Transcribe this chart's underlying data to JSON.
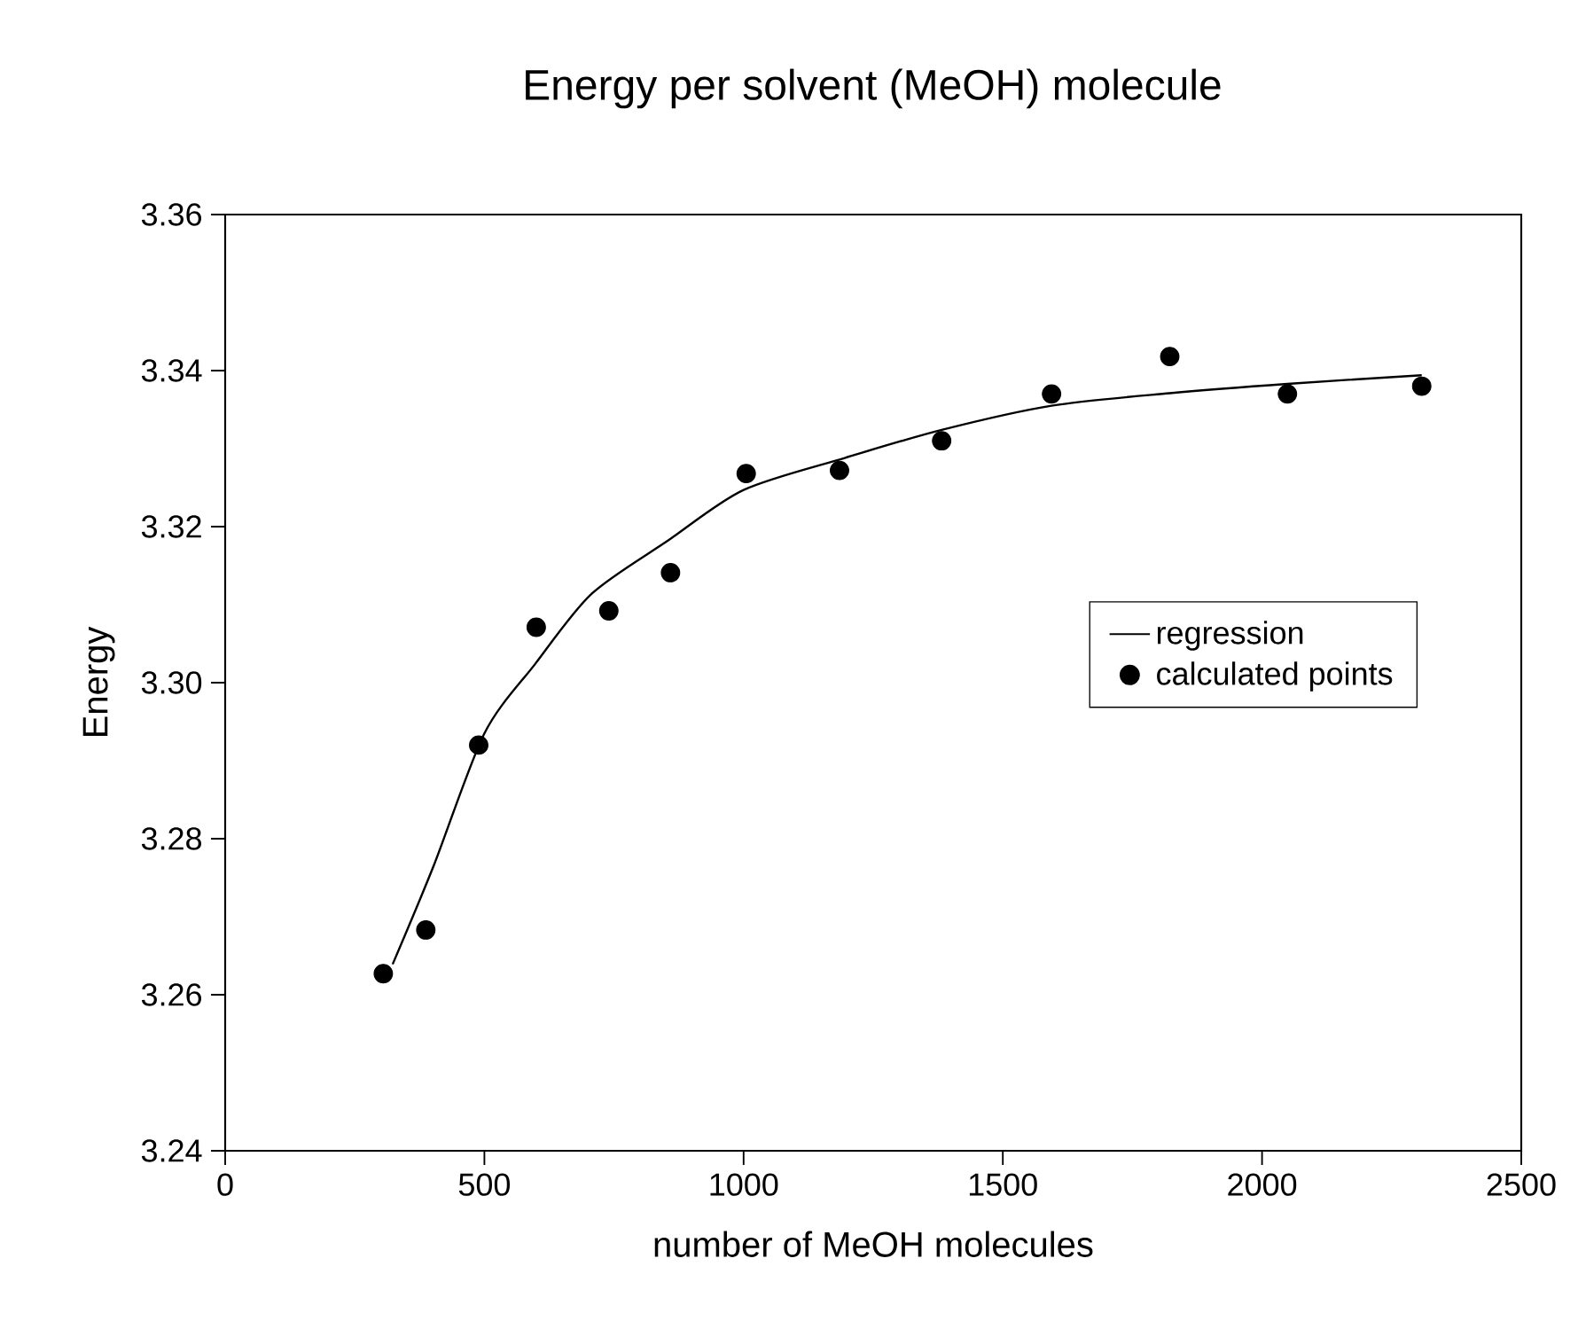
{
  "chart_data": {
    "type": "scatter",
    "title": "Energy per solvent (MeOH) molecule",
    "xlabel": "number of MeOH molecules",
    "ylabel": "Energy",
    "xlim": [
      0,
      2500
    ],
    "ylim": [
      3.24,
      3.36
    ],
    "xticks": [
      0,
      500,
      1000,
      1500,
      2000,
      2500
    ],
    "yticks": [
      {
        "value": 3.24,
        "label": "3.24"
      },
      {
        "value": 3.26,
        "label": "3.26"
      },
      {
        "value": 3.28,
        "label": "3.28"
      },
      {
        "value": 3.3,
        "label": "3.30"
      },
      {
        "value": 3.32,
        "label": "3.32"
      },
      {
        "value": 3.34,
        "label": "3.34"
      },
      {
        "value": 3.36,
        "label": "3.36"
      }
    ],
    "grid": false,
    "legend": "right",
    "series": [
      {
        "name": "regression",
        "type": "line",
        "color": "#000000",
        "marker": "none",
        "line_style": "solid",
        "x": [
          323,
          402,
          500,
          598,
          707,
          854,
          1000,
          1195,
          1382,
          1594,
          1822,
          2049,
          2308
        ],
        "values": [
          3.2639,
          3.2765,
          3.2935,
          3.3024,
          3.3114,
          3.3182,
          3.3247,
          3.3288,
          3.3324,
          3.3355,
          3.3371,
          3.3383,
          3.3394
        ]
      },
      {
        "name": "calculated points",
        "color": "#000000",
        "marker": "circle",
        "x": [
          305,
          387,
          489,
          600,
          740,
          859,
          1005,
          1185,
          1382,
          1594,
          1822,
          2049,
          2308
        ],
        "values": [
          3.2627,
          3.2683,
          3.292,
          3.3071,
          3.3092,
          3.3141,
          3.3268,
          3.3272,
          3.331,
          3.337,
          3.3418,
          3.337,
          3.338
        ]
      }
    ]
  }
}
